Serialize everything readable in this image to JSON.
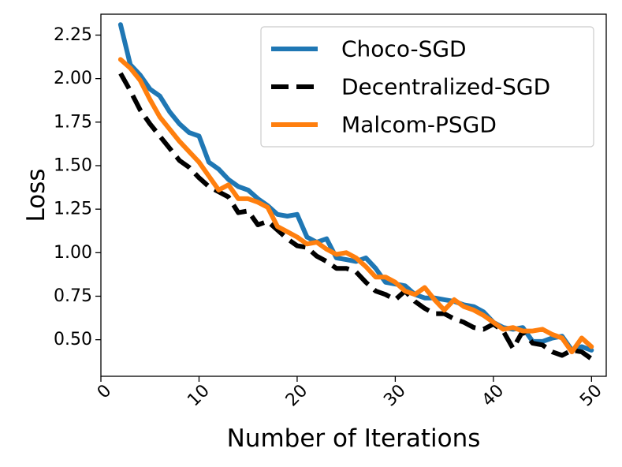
{
  "chart_data": {
    "type": "line",
    "title": "",
    "xlabel": "Number of Iterations",
    "ylabel": "Loss",
    "xlim": [
      0,
      51.5
    ],
    "ylim": [
      0.29,
      2.37
    ],
    "xticks": [
      0,
      10,
      20,
      30,
      40,
      50
    ],
    "xtick_labels": [
      "0",
      "10",
      "20",
      "30",
      "40",
      "50"
    ],
    "yticks": [
      0.5,
      0.75,
      1.0,
      1.25,
      1.5,
      1.75,
      2.0,
      2.25
    ],
    "ytick_labels": [
      "0.50",
      "0.75",
      "1.00",
      "1.25",
      "1.50",
      "1.75",
      "2.00",
      "2.25"
    ],
    "grid": false,
    "legend_position": "top-right",
    "x": [
      2,
      3,
      4,
      5,
      6,
      7,
      8,
      9,
      10,
      11,
      12,
      13,
      14,
      15,
      16,
      17,
      18,
      19,
      20,
      21,
      22,
      23,
      24,
      25,
      26,
      27,
      28,
      29,
      30,
      31,
      32,
      33,
      34,
      35,
      36,
      37,
      38,
      39,
      40,
      41,
      42,
      43,
      44,
      45,
      46,
      47,
      48,
      49,
      50
    ],
    "series": [
      {
        "name": "Choco-SGD",
        "color": "#1f77b4",
        "style": "solid",
        "values": [
          2.31,
          2.08,
          2.02,
          1.94,
          1.9,
          1.81,
          1.74,
          1.69,
          1.67,
          1.52,
          1.48,
          1.42,
          1.38,
          1.36,
          1.31,
          1.27,
          1.22,
          1.21,
          1.22,
          1.09,
          1.06,
          1.08,
          0.97,
          0.96,
          0.95,
          0.97,
          0.91,
          0.83,
          0.82,
          0.81,
          0.76,
          0.74,
          0.74,
          0.73,
          0.72,
          0.7,
          0.69,
          0.66,
          0.6,
          0.57,
          0.56,
          0.57,
          0.49,
          0.49,
          0.51,
          0.52,
          0.44,
          0.46,
          0.44
        ]
      },
      {
        "name": "Decentralized-SGD",
        "color": "#000000",
        "style": "dashed",
        "values": [
          2.03,
          1.93,
          1.82,
          1.74,
          1.67,
          1.6,
          1.53,
          1.49,
          1.43,
          1.38,
          1.35,
          1.32,
          1.23,
          1.24,
          1.16,
          1.18,
          1.13,
          1.08,
          1.04,
          1.03,
          0.98,
          0.95,
          0.91,
          0.91,
          0.89,
          0.83,
          0.78,
          0.76,
          0.73,
          0.78,
          0.72,
          0.68,
          0.65,
          0.65,
          0.62,
          0.6,
          0.57,
          0.56,
          0.59,
          0.55,
          0.45,
          0.55,
          0.48,
          0.47,
          0.43,
          0.41,
          0.44,
          0.43,
          0.39
        ]
      },
      {
        "name": "Malcom-PSGD",
        "color": "#ff7f0e",
        "style": "solid",
        "values": [
          2.11,
          2.06,
          1.99,
          1.88,
          1.78,
          1.71,
          1.64,
          1.58,
          1.52,
          1.44,
          1.36,
          1.39,
          1.31,
          1.31,
          1.29,
          1.26,
          1.15,
          1.12,
          1.09,
          1.05,
          1.06,
          1.02,
          0.99,
          1.0,
          0.97,
          0.92,
          0.86,
          0.86,
          0.83,
          0.78,
          0.76,
          0.8,
          0.73,
          0.67,
          0.73,
          0.69,
          0.67,
          0.64,
          0.6,
          0.56,
          0.57,
          0.55,
          0.55,
          0.56,
          0.53,
          0.51,
          0.43,
          0.51,
          0.46
        ]
      }
    ]
  }
}
